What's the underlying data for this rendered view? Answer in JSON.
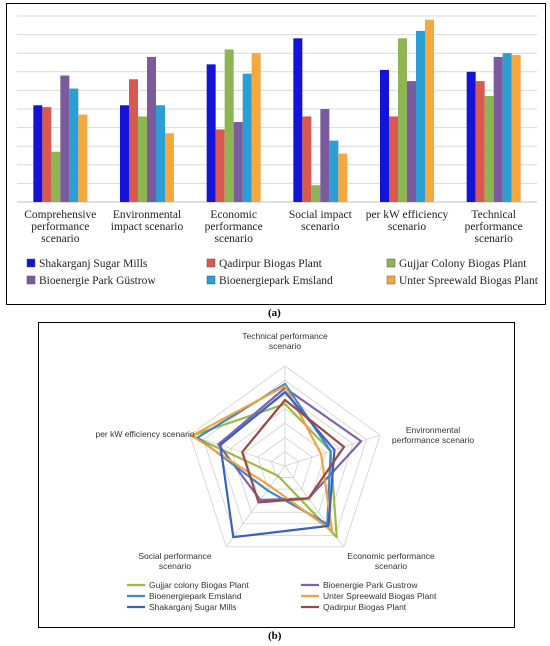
{
  "captions": {
    "a": "(a)",
    "b": "(b)"
  },
  "colors": {
    "shakarganj": "#1414d8",
    "qadirpur": "#d9584f",
    "gujjar": "#8db553",
    "bioenergie_gustrow": "#7b5b9e",
    "emsland": "#2b9fd4",
    "spreewald": "#f5a83e",
    "radar_gujjar": "#9cbb45",
    "radar_gustrow": "#7e62b0",
    "radar_emsland": "#3f86c8",
    "radar_spreewald": "#f1a33d",
    "radar_shakarganj": "#3b5fc2",
    "radar_qadirpur": "#9a4a44"
  },
  "chart_data": [
    {
      "type": "bar",
      "categories": [
        [
          "Comprehensive",
          "performance",
          "scenario"
        ],
        [
          "Environmental",
          "impact scenario"
        ],
        [
          "Economic",
          "performance",
          "scenario"
        ],
        [
          "Social impact",
          "scenario"
        ],
        [
          "per kW efficiency",
          "scenario"
        ],
        [
          "Technical",
          "performance",
          "scenario"
        ]
      ],
      "ylim": [
        0,
        1
      ],
      "grid": true,
      "legend_position": "bottom",
      "series": [
        {
          "name": "Shakarganj Sugar Mills",
          "color_key": "shakarganj",
          "values": [
            0.52,
            0.52,
            0.74,
            0.88,
            0.71,
            0.7
          ]
        },
        {
          "name": "Qadirpur Biogas Plant",
          "color_key": "qadirpur",
          "values": [
            0.51,
            0.66,
            0.39,
            0.46,
            0.46,
            0.65
          ]
        },
        {
          "name": "Gujjar Colony Biogas Plant",
          "color_key": "gujjar",
          "values": [
            0.27,
            0.46,
            0.82,
            0.09,
            0.88,
            0.57
          ]
        },
        {
          "name": "Bioenergie Park Güstrow",
          "color_key": "bioenergie_gustrow",
          "values": [
            0.68,
            0.78,
            0.43,
            0.5,
            0.65,
            0.78
          ]
        },
        {
          "name": "Bioenergiepark Emsland",
          "color_key": "emsland",
          "values": [
            0.61,
            0.52,
            0.69,
            0.33,
            0.92,
            0.8
          ]
        },
        {
          "name": "Unter Spreewald Biogas Plant",
          "color_key": "spreewald",
          "values": [
            0.47,
            0.37,
            0.8,
            0.26,
            0.98,
            0.79
          ]
        }
      ]
    },
    {
      "type": "radar",
      "axes": [
        [
          "Technical performance",
          "scenario"
        ],
        [
          "Environmental",
          "performance scenario"
        ],
        [
          "Economic performance",
          "scenario"
        ],
        [
          "Social performance",
          "scenario"
        ],
        [
          "per kW efficiency scenario"
        ]
      ],
      "range": [
        0,
        1
      ],
      "rings": 7,
      "legend_position": "bottom",
      "series": [
        {
          "name": "Gujjar colony Biogas Plant",
          "color_key": "radar_gujjar",
          "values": [
            0.62,
            0.48,
            0.88,
            0.12,
            0.98
          ]
        },
        {
          "name": "Bioenergie Park Gustrow",
          "color_key": "radar_gustrow",
          "values": [
            0.78,
            0.8,
            0.4,
            0.42,
            0.7
          ]
        },
        {
          "name": "Bioenergiepark Emsland",
          "color_key": "radar_emsland",
          "values": [
            0.82,
            0.48,
            0.72,
            0.3,
            0.92
          ]
        },
        {
          "name": "Unter Spreewald Biogas Plant",
          "color_key": "radar_spreewald",
          "values": [
            0.8,
            0.38,
            0.8,
            0.25,
            0.98
          ]
        },
        {
          "name": "Shakarganj Sugar Mills",
          "color_key": "radar_shakarganj",
          "values": [
            0.74,
            0.52,
            0.74,
            0.88,
            0.68
          ]
        },
        {
          "name": "Qadirpur Biogas Plant",
          "color_key": "radar_qadirpur",
          "values": [
            0.66,
            0.62,
            0.4,
            0.45,
            0.45
          ]
        }
      ]
    }
  ]
}
